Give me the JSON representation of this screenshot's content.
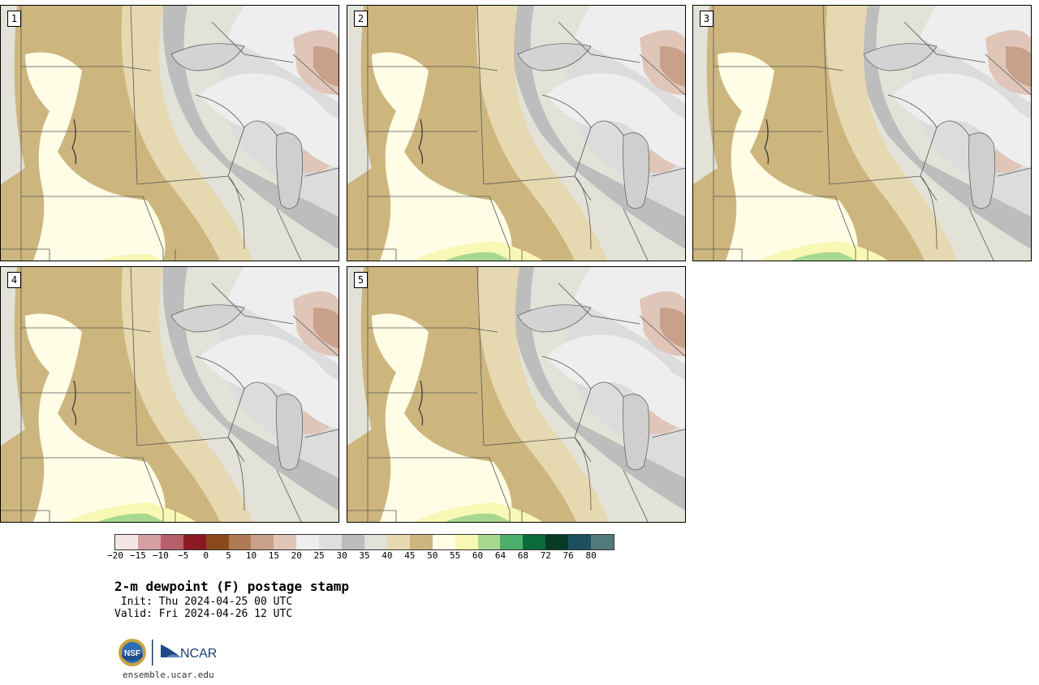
{
  "panels": [
    {
      "label": "1"
    },
    {
      "label": "2"
    },
    {
      "label": "3"
    },
    {
      "label": "4"
    },
    {
      "label": "5"
    }
  ],
  "colorbar": {
    "colors": [
      "#f5e6e6",
      "#d4a0a4",
      "#b5606a",
      "#8c1a22",
      "#8a4a1a",
      "#b07a55",
      "#c9a08a",
      "#e0c6b8",
      "#eeeeee",
      "#dedede",
      "#bcbcbc",
      "#e2e2d8",
      "#e6d8b0",
      "#cdb67e",
      "#fffde6",
      "#f8f8b4",
      "#a8d890",
      "#4cae6a",
      "#0a6a3a",
      "#083a26",
      "#1c5060",
      "#507a7c"
    ],
    "ticks": [
      "−20",
      "−15",
      "−10",
      "−5",
      "0",
      "5",
      "10",
      "15",
      "20",
      "25",
      "30",
      "35",
      "40",
      "45",
      "50",
      "55",
      "60",
      "64",
      "68",
      "72",
      "76",
      "80"
    ]
  },
  "title": "2-m dewpoint (F) postage stamp",
  "init": " Init: Thu 2024-04-25 00 UTC",
  "valid": "Valid: Fri 2024-04-26 12 UTC",
  "logo": {
    "nsf_text": "NSF",
    "ncar_text": "NCAR"
  },
  "site": "ensemble.ucar.edu"
}
